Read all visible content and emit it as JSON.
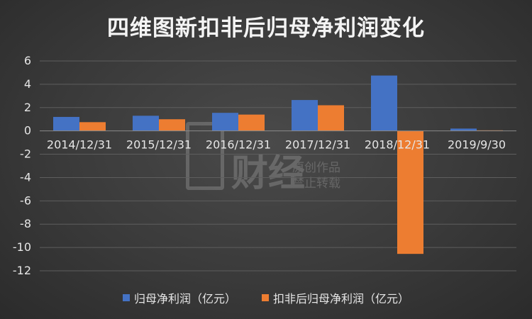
{
  "title": "四维图新扣非后归母净利润变化",
  "watermark": {
    "brand": "财经",
    "line1": "原创作品",
    "line2": "禁止转载"
  },
  "colors": {
    "series1": "#4472c4",
    "series2": "#ed7d31",
    "grid": "#5e5e5e",
    "axis": "#8a8a8a",
    "text": "#e6e6e6"
  },
  "chart_data": {
    "type": "bar",
    "title": "四维图新扣非后归母净利润变化",
    "categories": [
      "2014/12/31",
      "2015/12/31",
      "2016/12/31",
      "2017/12/31",
      "2018/12/31",
      "2019/9/30"
    ],
    "series": [
      {
        "name": "归母净利润（亿元）",
        "values": [
          1.2,
          1.3,
          1.55,
          2.65,
          4.75,
          0.2
        ]
      },
      {
        "name": "扣非后归母净利润（亿元）",
        "values": [
          0.75,
          1.0,
          1.4,
          2.2,
          -10.55,
          0.05
        ]
      }
    ],
    "ylim": [
      -12,
      6
    ],
    "yticks": [
      6,
      4,
      2,
      0,
      -2,
      -4,
      -6,
      -8,
      -10,
      -12
    ],
    "grid": true,
    "legend_position": "bottom"
  }
}
